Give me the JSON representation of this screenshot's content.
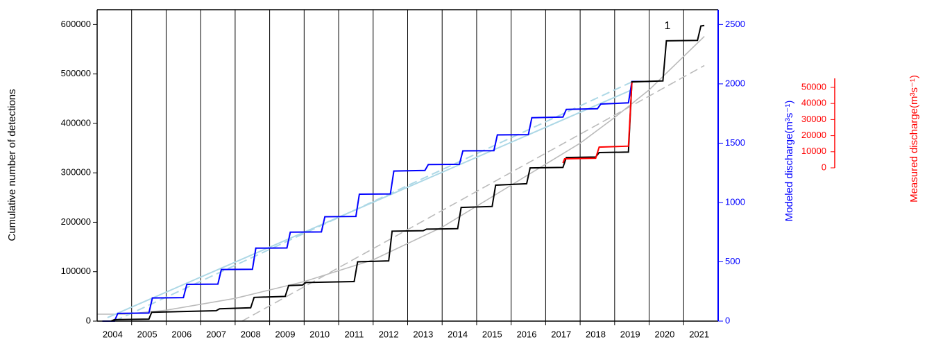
{
  "chart_data": {
    "type": "line",
    "ylabel": "Cumulative number of detections",
    "y2label": "Modeled discharge(m³s⁻¹)",
    "y3label": "Measured discharge(m³s⁻¹)",
    "annotation": "1",
    "categories": [
      "2004",
      "2005",
      "2006",
      "2007",
      "2008",
      "2009",
      "2010",
      "2011",
      "2012",
      "2013",
      "2014",
      "2015",
      "2016",
      "2017",
      "2018",
      "2019",
      "2020",
      "2021"
    ],
    "xlim": [
      2004,
      2022
    ],
    "xticks": [
      2005,
      2006,
      2007,
      2008,
      2009,
      2010,
      2011,
      2012,
      2013,
      2014,
      2015,
      2016,
      2017,
      2018,
      2019,
      2020,
      2021
    ],
    "ylim": [
      0,
      630000
    ],
    "yticks": [
      0,
      100000,
      200000,
      300000,
      400000,
      500000,
      600000
    ],
    "y2lim": [
      0,
      2625
    ],
    "y2ticks": [
      0,
      500,
      1000,
      1500,
      2000,
      2500
    ],
    "y3lim": [
      0,
      55600
    ],
    "y3ticks": [
      0,
      10000,
      20000,
      30000,
      40000,
      50000
    ],
    "grid": true,
    "series": [
      {
        "color": "#bbbbbb",
        "dash": false,
        "axis": "y",
        "x": [
          2004,
          2004.8,
          2006,
          2008,
          2010,
          2012,
          2014,
          2016,
          2018,
          2019,
          2020,
          2021.6
        ],
        "values": [
          14000,
          14000,
          22000,
          46000,
          80000,
          124000,
          190000,
          275000,
          360000,
          412000,
          468000,
          576000
        ]
      },
      {
        "color": "#bbbbbb",
        "dash": true,
        "axis": "y",
        "x": [
          2008.2,
          2021.6
        ],
        "values": [
          0,
          517000
        ]
      },
      {
        "color": "#add8e6",
        "dash": false,
        "axis": "y2",
        "x": [
          2004.3,
          2019.5
        ],
        "values": [
          30,
          1950
        ]
      },
      {
        "color": "#add8e6",
        "dash": true,
        "axis": "y2",
        "x": [
          2004.5,
          2019.6
        ],
        "values": [
          0,
          2030
        ]
      },
      {
        "color": "#0000ff",
        "dash": false,
        "axis": "y2",
        "x": [
          2004.15,
          2004.5,
          2004.6,
          2005.5,
          2005.6,
          2006.5,
          2006.6,
          2007.5,
          2007.6,
          2008.5,
          2008.6,
          2009.5,
          2009.6,
          2010.5,
          2010.6,
          2011.5,
          2011.6,
          2012.5,
          2012.6,
          2013.5,
          2013.6,
          2014.5,
          2014.6,
          2015.5,
          2015.6,
          2016.5,
          2016.6,
          2017.5,
          2017.6,
          2018.5,
          2018.6,
          2019.4,
          2019.5,
          2020.0
        ],
        "values": [
          0,
          0,
          65,
          68,
          195,
          198,
          310,
          312,
          435,
          437,
          615,
          617,
          750,
          752,
          880,
          882,
          1070,
          1072,
          1265,
          1270,
          1320,
          1322,
          1435,
          1437,
          1570,
          1572,
          1715,
          1720,
          1785,
          1790,
          1830,
          1840,
          2020,
          2020
        ]
      },
      {
        "color": "#000000",
        "dash": false,
        "axis": "y",
        "x": [
          2004.4,
          2004.5,
          2005.5,
          2005.58,
          2007.45,
          2007.55,
          2008.45,
          2008.55,
          2009.45,
          2009.55,
          2009.95,
          2010.05,
          2011.45,
          2011.55,
          2012.45,
          2012.55,
          2013.45,
          2013.55,
          2014.45,
          2014.55,
          2015.45,
          2015.55,
          2016.45,
          2016.55,
          2017.5,
          2017.6,
          2018.45,
          2018.55,
          2019.4,
          2019.5,
          2020.4,
          2020.5,
          2021.4,
          2021.5,
          2021.6
        ],
        "values": [
          0,
          3000,
          4000,
          18000,
          21000,
          25000,
          27000,
          48000,
          50000,
          72000,
          73000,
          78000,
          80000,
          120000,
          122000,
          182000,
          183000,
          186000,
          187000,
          230000,
          232000,
          275000,
          278000,
          310000,
          311000,
          331000,
          332000,
          341000,
          342000,
          484000,
          486000,
          567000,
          568000,
          597000,
          598000
        ]
      },
      {
        "color": "#ff0000",
        "dash": false,
        "axis": "y3",
        "x": [
          2017.5,
          2017.55,
          2018.45,
          2018.55,
          2019.4,
          2019.5
        ],
        "values": [
          3000,
          5600,
          6000,
          12900,
          13500,
          53000
        ]
      }
    ]
  }
}
